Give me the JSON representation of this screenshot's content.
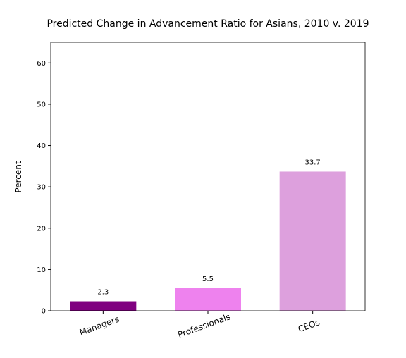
{
  "chart_data": {
    "type": "bar",
    "title": "Predicted Change in Advancement Ratio for Asians, 2010 v. 2019",
    "xlabel": "",
    "ylabel": "Percent",
    "categories": [
      "Managers",
      "Professionals",
      "CEOs"
    ],
    "values": [
      2.3,
      5.5,
      33.7
    ],
    "data_labels": [
      "2.3",
      "5.5",
      "33.7"
    ],
    "bar_colors": [
      "#800080",
      "#ee82ee",
      "#dda0dd"
    ],
    "ylim": [
      0,
      65
    ],
    "yticks": [
      0,
      10,
      20,
      30,
      40,
      50,
      60
    ],
    "grid": false,
    "legend": "none"
  }
}
